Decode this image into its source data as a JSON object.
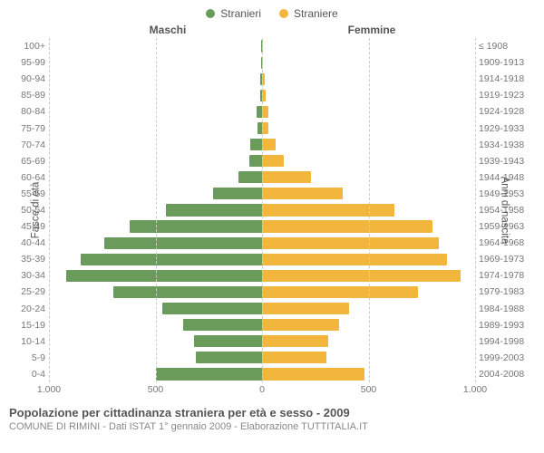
{
  "chart": {
    "type": "population-pyramid",
    "background_color": "#ffffff",
    "grid_color": "#cccccc",
    "center_axis_color": "#888888",
    "tick_font_color": "#777777",
    "tick_font_size": 10.5,
    "header_font_size": 12,
    "axis_label_font_size": 11.5,
    "header_color": "#555555",
    "legend": [
      {
        "label": "Stranieri",
        "color": "#6a9b5b"
      },
      {
        "label": "Straniere",
        "color": "#f2b63c"
      }
    ],
    "header_left": "Maschi",
    "header_right": "Femmine",
    "y_axis_left_label": "Fasce di età",
    "y_axis_right_label": "Anni di nascita",
    "x_axis": {
      "max": 1000,
      "ticks_left": [
        "1.000",
        "500",
        "0"
      ],
      "ticks_right": [
        "500",
        "1.000"
      ]
    },
    "age_groups": [
      "100+",
      "95-99",
      "90-94",
      "85-89",
      "80-84",
      "75-79",
      "70-74",
      "65-69",
      "60-64",
      "55-59",
      "50-54",
      "45-49",
      "40-44",
      "35-39",
      "30-34",
      "25-29",
      "20-24",
      "15-19",
      "10-14",
      "5-9",
      "0-4"
    ],
    "birth_years": [
      "≤ 1908",
      "1909-1913",
      "1914-1918",
      "1919-1923",
      "1924-1928",
      "1929-1933",
      "1934-1938",
      "1939-1943",
      "1944-1948",
      "1949-1953",
      "1954-1958",
      "1959-1963",
      "1964-1968",
      "1969-1973",
      "1974-1978",
      "1979-1983",
      "1984-1988",
      "1989-1993",
      "1994-1998",
      "1999-2003",
      "2004-2008"
    ],
    "male": [
      3,
      3,
      8,
      10,
      25,
      20,
      55,
      60,
      110,
      230,
      450,
      620,
      740,
      850,
      920,
      700,
      470,
      370,
      320,
      310,
      500
    ],
    "female": [
      3,
      3,
      12,
      15,
      30,
      30,
      65,
      100,
      230,
      380,
      620,
      800,
      830,
      870,
      930,
      730,
      410,
      360,
      310,
      300,
      480
    ],
    "male_color": "#6a9b5b",
    "female_color": "#f2b63c",
    "bar_height_ratio": 0.82
  },
  "caption": {
    "title": "Popolazione per cittadinanza straniera per età e sesso - 2009",
    "subtitle": "COMUNE DI RIMINI - Dati ISTAT 1° gennaio 2009 - Elaborazione TUTTITALIA.IT",
    "title_font_size": 13,
    "title_color": "#555555",
    "subtitle_font_size": 11,
    "subtitle_color": "#888888"
  }
}
